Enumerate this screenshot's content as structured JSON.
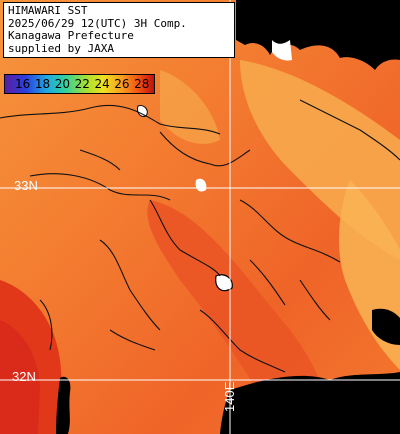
{
  "header": {
    "line1": "HIMAWARI SST",
    "line2": "2025/06/29 12(UTC) 3H Comp.",
    "line3": "Kanagawa Prefecture",
    "line4": "supplied by JAXA"
  },
  "scale": {
    "ticks": [
      "16",
      "18",
      "20",
      "22",
      "24",
      "26",
      "28"
    ]
  },
  "gridlabels": {
    "lat33": "33N",
    "lat32": "32N",
    "lon140": "140E"
  },
  "colors": {
    "land": "#000000",
    "sea_warm": "#f26e2a",
    "sea_hot": "#e23a1c",
    "sea_cool": "#f8a84a",
    "grid": "#ffffff"
  }
}
